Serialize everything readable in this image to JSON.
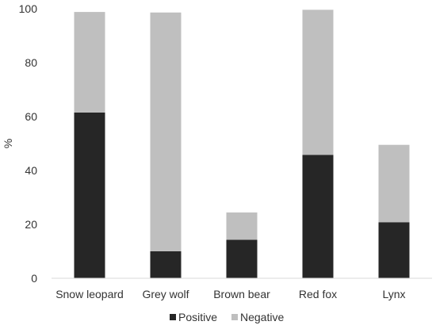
{
  "chart_data": {
    "type": "bar",
    "stacked": true,
    "categories": [
      "Snow leopard",
      "Grey wolf",
      "Brown bear",
      "Red fox",
      "Lynx"
    ],
    "series": [
      {
        "name": "Positive",
        "values": [
          61.5,
          10.0,
          14.3,
          45.8,
          20.8
        ],
        "color": "#262626"
      },
      {
        "name": "Negative",
        "values": [
          37.3,
          88.6,
          10.1,
          53.8,
          28.7
        ],
        "color": "#bfbfbf"
      }
    ],
    "title": "",
    "xlabel": "",
    "ylabel": "%",
    "ylim": [
      0,
      100
    ],
    "yticks": [
      0,
      20,
      40,
      60,
      80,
      100
    ],
    "grid": false,
    "legend_position": "bottom"
  }
}
